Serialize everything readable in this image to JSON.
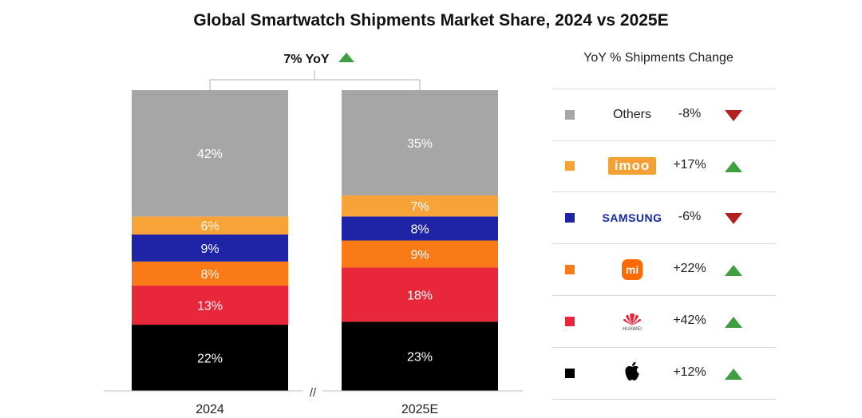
{
  "title": "Global Smartwatch Shipments Market Share, 2024 vs 2025E",
  "yoy_label": "7% YoY",
  "axis_break": "//",
  "colors": {
    "Others": "#a6a6a6",
    "imoo": "#f8a338",
    "Samsung": "#1f24a6",
    "Xiaomi": "#f97a17",
    "Huawei": "#e8283a",
    "Apple": "#000000",
    "up": "#3f9e3f",
    "down": "#b51f1f"
  },
  "chart_data": {
    "type": "bar",
    "stacked": true,
    "categories": [
      "2024",
      "2025E"
    ],
    "series": [
      {
        "name": "Apple",
        "values": [
          22,
          23
        ],
        "labels": [
          "22%",
          "23%"
        ]
      },
      {
        "name": "Huawei",
        "values": [
          13,
          18
        ],
        "labels": [
          "13%",
          "18%"
        ]
      },
      {
        "name": "Xiaomi",
        "values": [
          8,
          9
        ],
        "labels": [
          "8%",
          "9%"
        ]
      },
      {
        "name": "Samsung",
        "values": [
          9,
          8
        ],
        "labels": [
          "9%",
          "8%"
        ]
      },
      {
        "name": "imoo",
        "values": [
          6,
          7
        ],
        "labels": [
          "6%",
          "7%"
        ]
      },
      {
        "name": "Others",
        "values": [
          42,
          35
        ],
        "labels": [
          "42%",
          "35%"
        ]
      }
    ],
    "ylim": [
      0,
      100
    ],
    "grid": false,
    "legend_placement": "right"
  },
  "legend": {
    "header": "YoY % Shipments Change",
    "rows": [
      {
        "key": "Others",
        "label": "Others",
        "logo": "text",
        "change": "-8%",
        "direction": "down",
        "icon": "triangle-down-icon"
      },
      {
        "key": "imoo",
        "label": "imoo",
        "logo": "imoo-logo",
        "change": "+17%",
        "direction": "up",
        "icon": "triangle-up-icon"
      },
      {
        "key": "Samsung",
        "label": "SAMSUNG",
        "logo": "samsung-logo",
        "change": "-6%",
        "direction": "down",
        "icon": "triangle-down-icon"
      },
      {
        "key": "Xiaomi",
        "label": "mi",
        "logo": "xiaomi-logo",
        "change": "+22%",
        "direction": "up",
        "icon": "triangle-up-icon"
      },
      {
        "key": "Huawei",
        "label": "HUAWEI",
        "logo": "huawei-logo",
        "change": "+42%",
        "direction": "up",
        "icon": "triangle-up-icon"
      },
      {
        "key": "Apple",
        "label": "Apple",
        "logo": "apple-logo",
        "change": "+12%",
        "direction": "up",
        "icon": "triangle-up-icon"
      }
    ]
  }
}
